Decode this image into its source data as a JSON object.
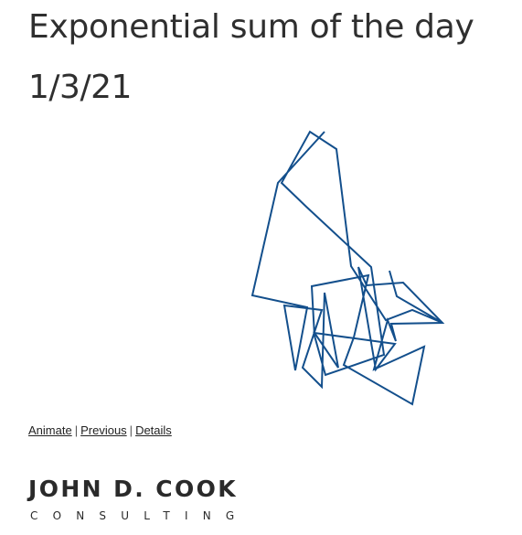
{
  "post": {
    "title": "Exponential sum of the day",
    "date": "1/3/21"
  },
  "plot": {
    "stroke_color": "#134f8c"
  },
  "links": {
    "animate": "Animate",
    "previous": "Previous",
    "details": "Details",
    "separator": "|"
  },
  "brand": {
    "name": "JOHN D. COOK",
    "tagline": "CONSULTING"
  }
}
